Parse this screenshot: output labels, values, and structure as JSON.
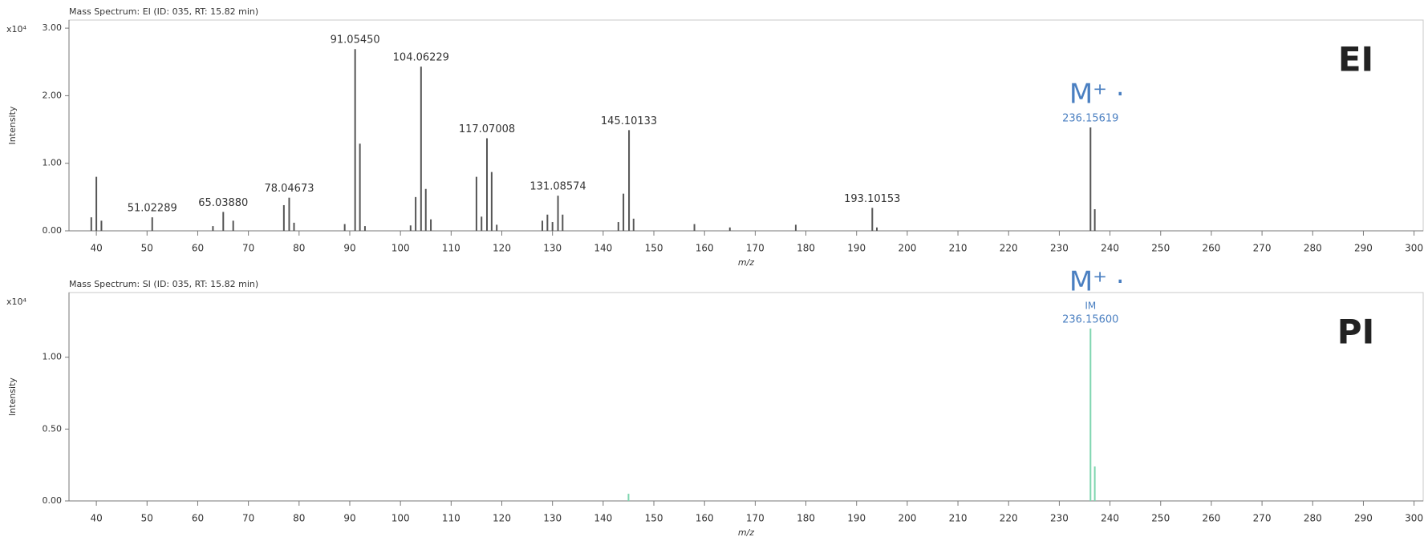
{
  "chart_data": [
    {
      "type": "stem",
      "title": "Mass Spectrum: EI (ID: 035, RT: 15.82 min)",
      "panel_label": "EI",
      "x_label": "m/z",
      "y_label": "Intensity",
      "y_scale_label": "x10⁴",
      "color": "#555555",
      "label_color": "#333333",
      "highlight_color": "#4a7fc1",
      "x": [
        39,
        40,
        41,
        51.02289,
        63,
        65.0388,
        67,
        77,
        78.04673,
        79,
        89,
        91.0545,
        92,
        93,
        102,
        103,
        104.06229,
        105,
        106,
        115,
        116,
        117.07008,
        118,
        119,
        128,
        129,
        130,
        131.08574,
        132,
        143,
        144,
        145.10133,
        146,
        158,
        165,
        178,
        193.10153,
        194,
        236.15619,
        237
      ],
      "values": [
        0.2,
        0.8,
        0.15,
        0.2,
        0.07,
        0.28,
        0.15,
        0.38,
        0.49,
        0.12,
        0.1,
        2.69,
        1.29,
        0.07,
        0.08,
        0.5,
        2.43,
        0.62,
        0.17,
        0.8,
        0.21,
        1.37,
        0.87,
        0.09,
        0.15,
        0.24,
        0.13,
        0.52,
        0.24,
        0.13,
        0.55,
        1.49,
        0.18,
        0.1,
        0.05,
        0.09,
        0.34,
        0.05,
        1.53,
        0.32
      ],
      "x_labels": [
        null,
        null,
        null,
        "51.02289",
        null,
        "65.03880",
        null,
        null,
        "78.04673",
        null,
        null,
        "91.05450",
        null,
        null,
        null,
        null,
        "104.06229",
        null,
        null,
        null,
        null,
        "117.07008",
        null,
        null,
        null,
        null,
        null,
        "131.08574",
        null,
        null,
        null,
        "145.10133",
        null,
        null,
        null,
        null,
        "193.10153",
        null,
        "236.15619",
        null
      ],
      "molecular_ion": {
        "index": 38,
        "label": "M⁺ ·",
        "tags": []
      },
      "xlim": [
        34.6,
        301.8
      ],
      "ylim": [
        0,
        3.12
      ],
      "xticks": [
        40,
        50,
        60,
        70,
        80,
        90,
        100,
        110,
        120,
        130,
        140,
        150,
        160,
        170,
        180,
        190,
        200,
        210,
        220,
        230,
        240,
        250,
        260,
        270,
        280,
        290,
        300
      ],
      "yticks": [
        {
          "value": 0,
          "label": "0.00"
        },
        {
          "value": 1,
          "label": "1.00"
        },
        {
          "value": 2,
          "label": "2.00"
        },
        {
          "value": 3,
          "label": "3.00"
        }
      ]
    },
    {
      "type": "stem",
      "title": "Mass Spectrum: SI (ID: 035, RT: 15.82 min)",
      "panel_label": "PI",
      "x_label": "m/z",
      "y_label": "Intensity",
      "y_scale_label": "x10⁴",
      "color": "#7fd6b0",
      "label_color": "#333333",
      "highlight_color": "#4a7fc1",
      "x": [
        145,
        236.156,
        237
      ],
      "values": [
        0.05,
        1.2,
        0.24
      ],
      "x_labels": [
        null,
        "236.15600",
        null
      ],
      "molecular_ion": {
        "index": 1,
        "label": "M⁺ ·",
        "tags": [
          "IM"
        ]
      },
      "xlim": [
        34.6,
        301.8
      ],
      "ylim": [
        0,
        1.45
      ],
      "xticks": [
        40,
        50,
        60,
        70,
        80,
        90,
        100,
        110,
        120,
        130,
        140,
        150,
        160,
        170,
        180,
        190,
        200,
        210,
        220,
        230,
        240,
        250,
        260,
        270,
        280,
        290,
        300
      ],
      "yticks": [
        {
          "value": 0,
          "label": "0.00"
        },
        {
          "value": 0.5,
          "label": "0.50"
        },
        {
          "value": 1,
          "label": "1.00"
        }
      ]
    }
  ]
}
